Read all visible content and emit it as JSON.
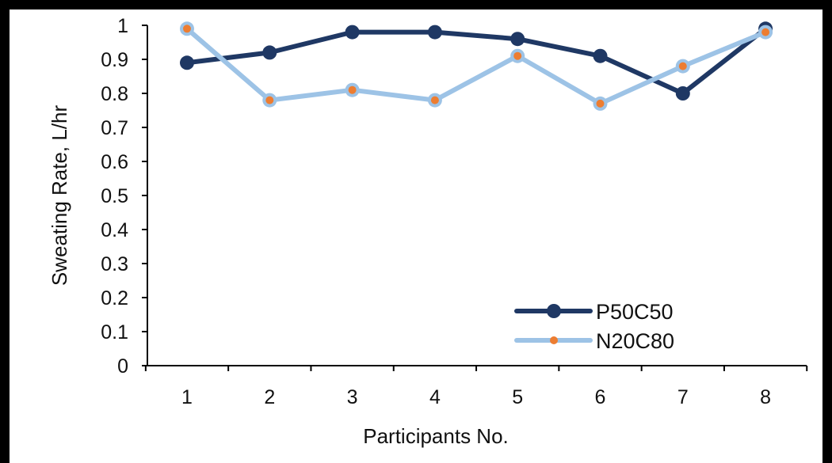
{
  "chart_data": {
    "type": "line",
    "title": "",
    "xlabel": "Participants No.",
    "ylabel": "Sweating Rate, L/hr",
    "categories": [
      "1",
      "2",
      "3",
      "4",
      "5",
      "6",
      "7",
      "8"
    ],
    "yticks": [
      "0",
      "0.1",
      "0.2",
      "0.3",
      "0.4",
      "0.5",
      "0.6",
      "0.7",
      "0.8",
      "0.9",
      "1"
    ],
    "ylim": [
      0,
      1
    ],
    "grid": false,
    "legend_position": "bottom-right",
    "series": [
      {
        "name": "P50C50",
        "values": [
          0.89,
          0.92,
          0.98,
          0.98,
          0.96,
          0.91,
          0.8,
          0.99
        ],
        "line_color": "#1f3864",
        "marker_color": "#1f3864"
      },
      {
        "name": "N20C80",
        "values": [
          0.99,
          0.78,
          0.81,
          0.78,
          0.91,
          0.77,
          0.88,
          0.98
        ],
        "line_color": "#9dc3e6",
        "marker_color": "#ed7d31"
      }
    ]
  }
}
